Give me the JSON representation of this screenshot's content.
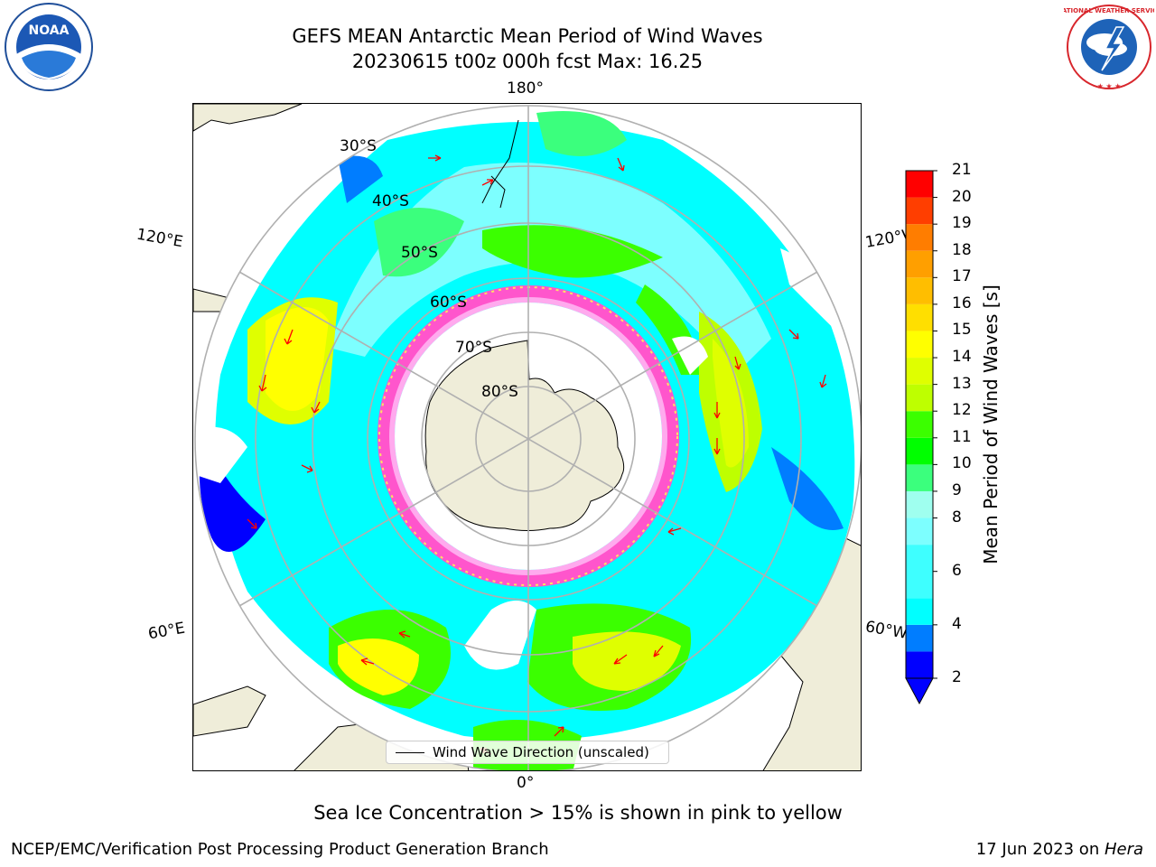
{
  "header": {
    "title_line1": "GEFS MEAN Antarctic Mean Period of Wind Waves",
    "title_line2": "20230615 t00z 000h fcst   Max: 16.25"
  },
  "logos": {
    "noaa_text": "NOAA",
    "nws_text": "NATIONAL WEATHER SERVICE"
  },
  "map": {
    "lon_labels": [
      "180°",
      "120°E",
      "120°W",
      "60°E",
      "60°W",
      "0°"
    ],
    "lat_labels": [
      "30°S",
      "40°S",
      "50°S",
      "60°S",
      "70°S",
      "80°S"
    ],
    "legend_label": "Wind Wave Direction (unscaled)",
    "colors": {
      "land": "#efedd9",
      "open_water": "#ffffff",
      "arrow": "#ff0000",
      "graticule": "#b0b0b0"
    }
  },
  "colorbar": {
    "label": "Mean Period of Wind Waves [s]",
    "ticks": [
      "21",
      "20",
      "19",
      "18",
      "17",
      "16",
      "15",
      "14",
      "13",
      "12",
      "11",
      "10",
      "9",
      "8",
      "6",
      "4",
      "2"
    ],
    "extend": "min",
    "levels": [
      {
        "from": 2,
        "to": 3,
        "color": "#0000ff"
      },
      {
        "from": 3,
        "to": 4,
        "color": "#007dff"
      },
      {
        "from": 4,
        "to": 5,
        "color": "#00ffff"
      },
      {
        "from": 5,
        "to": 7,
        "color": "#3effff"
      },
      {
        "from": 7,
        "to": 8,
        "color": "#7dffff"
      },
      {
        "from": 8,
        "to": 9,
        "color": "#9fffef"
      },
      {
        "from": 9,
        "to": 10,
        "color": "#3bff7d"
      },
      {
        "from": 10,
        "to": 11,
        "color": "#00ff00"
      },
      {
        "from": 11,
        "to": 12,
        "color": "#3bff00"
      },
      {
        "from": 12,
        "to": 13,
        "color": "#beff00"
      },
      {
        "from": 13,
        "to": 14,
        "color": "#dfff00"
      },
      {
        "from": 14,
        "to": 15,
        "color": "#ffff00"
      },
      {
        "from": 15,
        "to": 16,
        "color": "#ffdf00"
      },
      {
        "from": 16,
        "to": 17,
        "color": "#ffbe00"
      },
      {
        "from": 17,
        "to": 18,
        "color": "#ff9f00"
      },
      {
        "from": 18,
        "to": 19,
        "color": "#ff7d00"
      },
      {
        "from": 19,
        "to": 20,
        "color": "#ff3e00"
      },
      {
        "from": 20,
        "to": 21,
        "color": "#ff0000"
      }
    ]
  },
  "caption": "Sea Ice Concentration > 15% is shown in pink to yellow",
  "footer": {
    "left": "NCEP/EMC/Verification Post Processing Product Generation Branch",
    "right_date": "17 Jun 2023 on ",
    "right_host": "Hera"
  }
}
